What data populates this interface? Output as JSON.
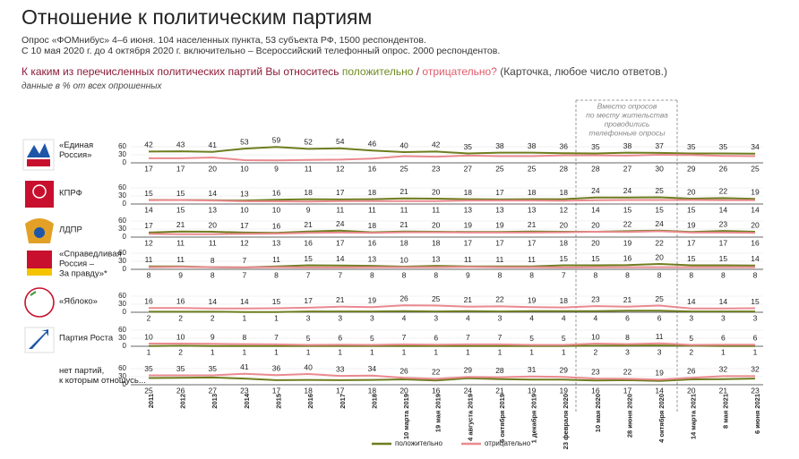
{
  "chart_data": {
    "type": "line",
    "title": "Отношение к политическим партиям",
    "subtitle": [
      "Опрос «ФОМнибус» 4–6 июня. 104 населенных пункта, 53 субъекта РФ, 1500 респондентов.",
      "С 10 мая 2020 г. до 4 октября 2020 г. включительно – Всероссийский телефонный опрос. 2000 респондентов."
    ],
    "question": [
      "К каким из перечисленных политических партий Вы относитесь ",
      "положительно",
      " / ",
      "отрицательно?",
      " (Карточка, любое число ответов.)"
    ],
    "note": "данные в % от всех опрошенных",
    "annotation": [
      "Вместо опросов",
      "по месту жительства",
      "проводились",
      "телефонные опросы"
    ],
    "categories": [
      "2011",
      "2012",
      "2013",
      "2014",
      "2015",
      "2016",
      "2017",
      "2018",
      "10 марта 2019",
      "19 мая 2019",
      "4 августа 2019",
      "6 октября 2019",
      "1 декабря 2019",
      "23 февраля 2020",
      "10 мая 2020",
      "28 июня 2020",
      "4 октября 2020",
      "14 марта 2021",
      "8 мая 2021",
      "6 июня 2021"
    ],
    "ylim": [
      0,
      60
    ],
    "yticks": [
      0,
      30,
      60
    ],
    "series": [
      {
        "name": "положительно",
        "color": "#6e7d1f"
      },
      {
        "name": "отрицательно",
        "color": "#ea8a90"
      }
    ],
    "panels": [
      {
        "label": [
          "«Единая",
          "Россия»"
        ],
        "values": [
          [
            42,
            43,
            41,
            53,
            59,
            52,
            54,
            46,
            40,
            42,
            35,
            38,
            38,
            36,
            35,
            38,
            37,
            35,
            35,
            34
          ],
          [
            17,
            17,
            20,
            10,
            9,
            11,
            12,
            16,
            25,
            23,
            27,
            25,
            25,
            28,
            28,
            27,
            30,
            29,
            26,
            25
          ]
        ]
      },
      {
        "label": [
          "КПРФ"
        ],
        "values": [
          [
            15,
            15,
            14,
            13,
            16,
            18,
            17,
            18,
            21,
            20,
            18,
            17,
            18,
            18,
            24,
            24,
            25,
            20,
            22,
            19
          ],
          [
            14,
            15,
            13,
            10,
            10,
            9,
            11,
            11,
            11,
            11,
            13,
            13,
            13,
            12,
            14,
            15,
            15,
            15,
            14,
            14
          ]
        ]
      },
      {
        "label": [
          "ЛДПР"
        ],
        "values": [
          [
            17,
            21,
            20,
            17,
            16,
            21,
            24,
            18,
            21,
            20,
            19,
            19,
            21,
            20,
            20,
            22,
            24,
            19,
            23,
            20
          ],
          [
            12,
            11,
            11,
            12,
            13,
            16,
            17,
            16,
            18,
            18,
            17,
            17,
            17,
            18,
            20,
            19,
            22,
            17,
            17,
            16
          ]
        ]
      },
      {
        "label": [
          "«Справедливая",
          "Россия –",
          "За правду»*"
        ],
        "values": [
          [
            11,
            11,
            8,
            7,
            11,
            15,
            14,
            13,
            10,
            13,
            11,
            11,
            11,
            15,
            15,
            16,
            20,
            15,
            15,
            14
          ],
          [
            8,
            9,
            8,
            7,
            8,
            7,
            7,
            8,
            8,
            8,
            9,
            8,
            8,
            7,
            8,
            8,
            8,
            8,
            8,
            8
          ]
        ]
      },
      {
        "label": [
          "«Яблоко»"
        ],
        "values": [
          [
            2,
            2,
            2,
            1,
            1,
            3,
            3,
            3,
            4,
            3,
            4,
            3,
            4,
            4,
            4,
            6,
            6,
            3,
            3,
            3
          ],
          [
            16,
            16,
            14,
            14,
            15,
            17,
            21,
            19,
            26,
            25,
            21,
            22,
            19,
            18,
            23,
            21,
            25,
            14,
            14,
            15
          ]
        ]
      },
      {
        "label": [
          "Партия Роста"
        ],
        "values": [
          [
            1,
            2,
            1,
            1,
            1,
            1,
            1,
            1,
            1,
            1,
            1,
            1,
            1,
            1,
            2,
            3,
            3,
            2,
            1,
            1
          ],
          [
            10,
            10,
            9,
            8,
            7,
            5,
            6,
            5,
            7,
            6,
            7,
            7,
            5,
            5,
            10,
            8,
            11,
            5,
            6,
            6
          ]
        ]
      },
      {
        "label": [
          "нет партий,",
          "к которым отношусь..."
        ],
        "values": [
          [
            25,
            26,
            27,
            23,
            17,
            18,
            17,
            18,
            20,
            16,
            24,
            21,
            19,
            19,
            16,
            17,
            14,
            20,
            21,
            23
          ],
          [
            35,
            35,
            35,
            41,
            36,
            40,
            33,
            34,
            26,
            22,
            29,
            28,
            31,
            29,
            23,
            22,
            19,
            26,
            32,
            32
          ]
        ]
      }
    ]
  }
}
